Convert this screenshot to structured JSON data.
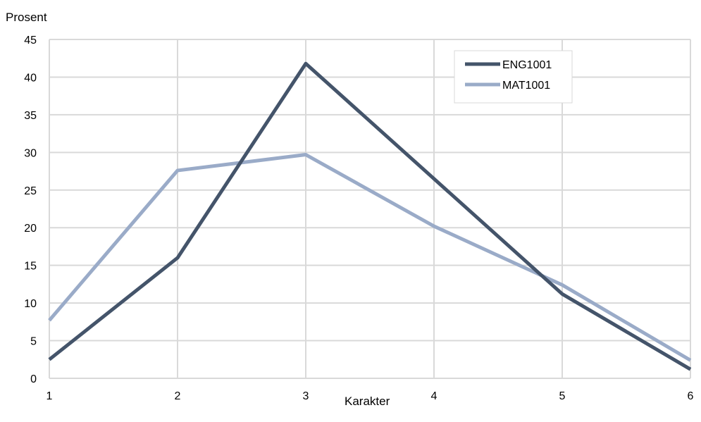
{
  "chart_data": {
    "type": "line",
    "xlabel": "Karakter",
    "ylabel": "Prosent",
    "x": [
      1,
      2,
      3,
      4,
      5,
      6
    ],
    "xlim": [
      1,
      6
    ],
    "ylim": [
      0,
      45
    ],
    "yticks": [
      0,
      5,
      10,
      15,
      20,
      25,
      30,
      35,
      40,
      45
    ],
    "grid": true,
    "legend_position": "top-right",
    "series": [
      {
        "name": "ENG1001",
        "color": "#44546a",
        "values": [
          2.5,
          16.0,
          41.8,
          26.5,
          11.2,
          1.2
        ]
      },
      {
        "name": "MAT1001",
        "color": "#9aabc8",
        "values": [
          7.7,
          27.6,
          29.7,
          20.2,
          12.4,
          2.4
        ]
      }
    ]
  }
}
